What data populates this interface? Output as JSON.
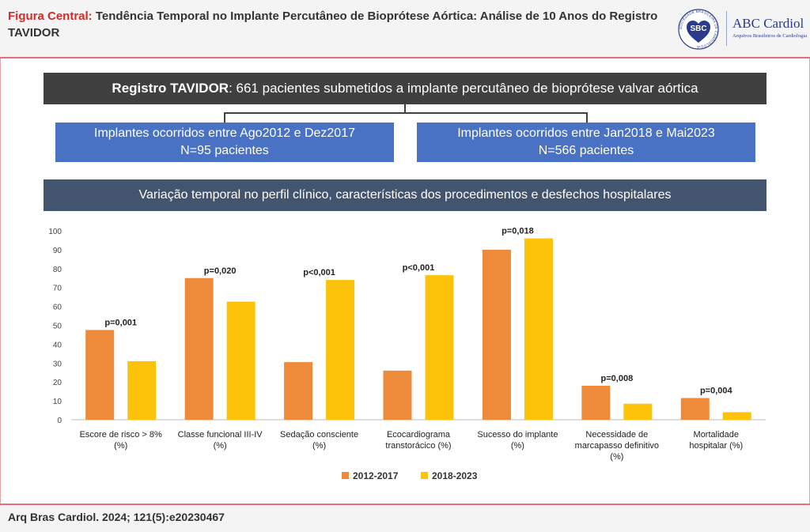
{
  "header": {
    "title_lead": "Figura Central:",
    "title_text": "Tendência Temporal no Implante Percutâneo de Bioprótese Aórtica: Análise de 10 Anos do Registro TAVIDOR",
    "logo_sbc": "SBC",
    "logo_sbc_ring": "SOCIEDADE BRASILEIRA DE CARDIOLOGIA",
    "logo_abc": "ABC Cardiol",
    "logo_abc_sub": "Arquivos Brasileiros de Cardiologia"
  },
  "banner": {
    "registry": "Registro TAVIDOR",
    "text": ": 661 pacientes submetidos a implante percutâneo de bioprótese valvar aórtica"
  },
  "groups": [
    {
      "line1": "Implantes ocorridos entre Ago2012 e Dez2017",
      "line2": "N=95 pacientes"
    },
    {
      "line1": "Implantes ocorridos entre Jan2018 e Mai2023",
      "line2": "N=566 pacientes"
    }
  ],
  "section_title": "Variação temporal no perfil clínico, características dos procedimentos e desfechos hospitalares",
  "chart_data": {
    "type": "bar",
    "title": "",
    "xlabel": "",
    "ylabel": "",
    "ylim": [
      0,
      100
    ],
    "yticks": [
      0,
      10,
      20,
      30,
      40,
      50,
      60,
      70,
      80,
      90,
      100
    ],
    "categories": [
      [
        "Escore de risco > 8%",
        "(%)"
      ],
      [
        "Classe funcional III-IV",
        "(%)"
      ],
      [
        "Sedação consciente",
        "(%)"
      ],
      [
        "Ecocardiograma",
        "transtorácico (%)"
      ],
      [
        "Sucesso do implante",
        "(%)"
      ],
      [
        "Necessidade de",
        "marcapasso definitivo",
        "(%)"
      ],
      [
        "Mortalidade",
        "hospitalar (%)"
      ]
    ],
    "series": [
      {
        "name": "2012-2017",
        "color": "#ed8b3a",
        "values": [
          47.5,
          75,
          30.5,
          26,
          90,
          18,
          11.5
        ]
      },
      {
        "name": "2018-2023",
        "color": "#fcc30a",
        "values": [
          31,
          62.5,
          74,
          76.5,
          96,
          8.5,
          4
        ]
      }
    ],
    "pvalues": [
      "p=0,001",
      "p=0,020",
      "p<0,001",
      "p<0,001",
      "p=0,018",
      "p=0,008",
      "p=0,004"
    ],
    "grid": false,
    "legend_position": "bottom-center"
  },
  "footer": {
    "citation": "Arq Bras Cardiol. 2024; 121(5):e20230467"
  }
}
